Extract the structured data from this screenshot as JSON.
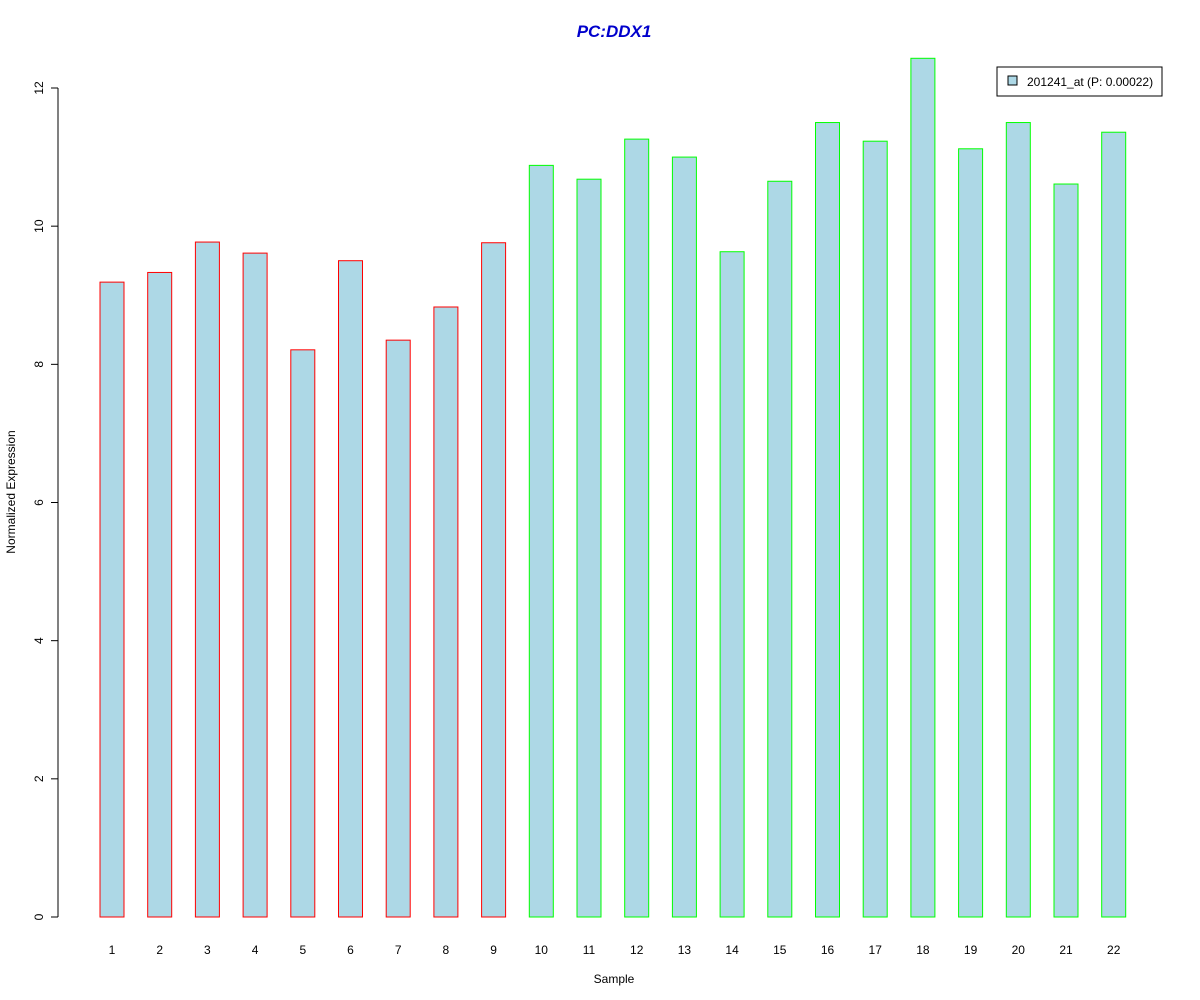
{
  "chart_data": {
    "type": "bar",
    "title": "PC:DDX1",
    "xlabel": "Sample",
    "ylabel": "Normalized Expression",
    "categories": [
      "1",
      "2",
      "3",
      "4",
      "5",
      "6",
      "7",
      "8",
      "9",
      "10",
      "11",
      "12",
      "13",
      "14",
      "15",
      "16",
      "17",
      "18",
      "19",
      "20",
      "21",
      "22"
    ],
    "series": [
      {
        "name": "201241_at (P: 0.00022)",
        "values": [
          9.19,
          9.33,
          9.77,
          9.61,
          8.21,
          9.5,
          8.35,
          8.83,
          9.76,
          10.88,
          10.68,
          11.26,
          11.0,
          9.63,
          10.65,
          11.5,
          11.23,
          12.43,
          11.12,
          11.5,
          10.61,
          11.36
        ]
      }
    ],
    "ylim": [
      0,
      12.4
    ],
    "yticks": [
      0,
      2,
      4,
      6,
      8,
      10,
      12
    ],
    "grid": false,
    "legend_position": "top-right",
    "colors": {
      "title": "#0000cc",
      "bar_fill": "#add8e6",
      "group_a_border": "#ff0000",
      "group_b_border": "#00ff00",
      "axis": "#000000"
    },
    "group_a_count": 9
  }
}
